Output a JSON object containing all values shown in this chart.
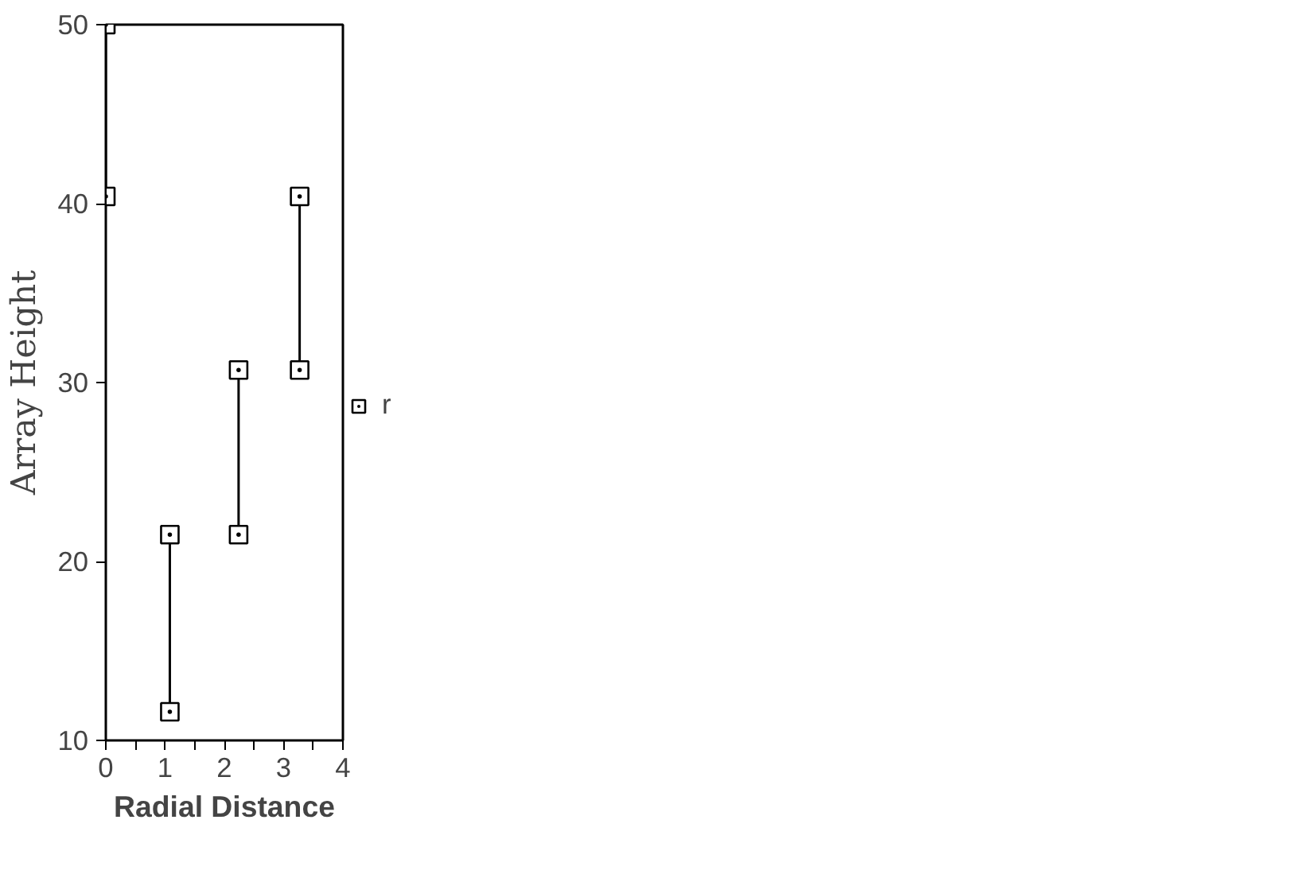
{
  "chart_data": {
    "type": "scatter",
    "xlabel": "Radial Distance",
    "ylabel": "Array Height",
    "xlim": [
      0,
      4
    ],
    "ylim": [
      10,
      50
    ],
    "xticks": [
      0,
      {
        "value": 0.5,
        "label": null
      },
      1,
      {
        "value": 1.5,
        "label": null
      },
      2,
      {
        "value": 2.5,
        "label": null
      },
      3,
      {
        "value": 3.5,
        "label": null
      },
      4
    ],
    "yticks": [
      10,
      20,
      30,
      40,
      50
    ],
    "grid": false,
    "legend": "right",
    "marker": "square",
    "series": [
      {
        "type": "line",
        "marker": "none",
        "color": "#000000",
        "x": [
          0,
          0,
          null,
          1.08,
          1.08,
          null,
          2.24,
          2.24,
          null,
          3.27,
          3.27
        ],
        "values": [
          50,
          40.4,
          null,
          21.5,
          11.6,
          null,
          30.7,
          21.5,
          null,
          40.4,
          30.7
        ]
      },
      {
        "name": "r",
        "color": "#000000",
        "x": [
          0,
          0,
          1.08,
          1.08,
          2.24,
          2.24,
          3.27,
          3.27
        ],
        "values": [
          50,
          40.4,
          21.5,
          11.6,
          30.7,
          21.5,
          40.4,
          30.7
        ]
      }
    ]
  }
}
